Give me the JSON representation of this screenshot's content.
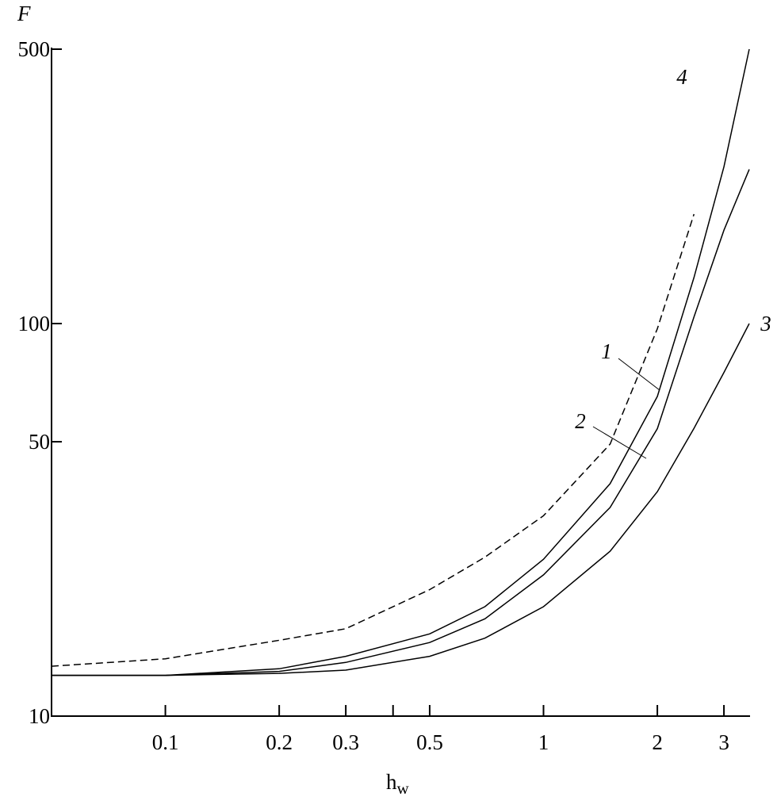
{
  "chart_data": {
    "type": "line",
    "ylabel": "F",
    "xlabel": "h",
    "xlabel_subscript": "w",
    "log_x": true,
    "log_y": true,
    "xlim": [
      0.05,
      3.5
    ],
    "ylim": [
      10,
      500
    ],
    "xticks": [
      0.1,
      0.2,
      0.3,
      0.5,
      1,
      2,
      3
    ],
    "minor_xticks": [
      0.4
    ],
    "yticks": [
      10,
      50,
      100,
      500
    ],
    "x": [
      0.05,
      0.1,
      0.2,
      0.3,
      0.5,
      0.7,
      1,
      1.5,
      2,
      2.5,
      3,
      3.5
    ],
    "series": [
      {
        "name": "1",
        "color": "#000000",
        "dashed": false,
        "values": [
          12.7,
          12.7,
          13.2,
          14.2,
          16.2,
          19.0,
          25.1,
          39.1,
          65.2,
          131,
          251,
          500
        ]
      },
      {
        "name": "2",
        "color": "#000000",
        "dashed": false,
        "values": [
          12.7,
          12.7,
          13.0,
          13.7,
          15.4,
          17.7,
          22.9,
          34.0,
          54.0,
          104,
          173,
          247
        ]
      },
      {
        "name": "3",
        "color": "#000000",
        "dashed": false,
        "values": [
          12.7,
          12.7,
          12.85,
          13.1,
          14.2,
          15.8,
          19.0,
          26.3,
          37.3,
          54.1,
          75.1,
          100
        ]
      },
      {
        "name": "4",
        "color": "#000000",
        "dashed": true,
        "values": [
          13.4,
          14.0,
          15.6,
          16.7,
          21.0,
          25.4,
          32.4,
          49.3,
          97,
          190,
          null,
          null
        ]
      }
    ]
  }
}
